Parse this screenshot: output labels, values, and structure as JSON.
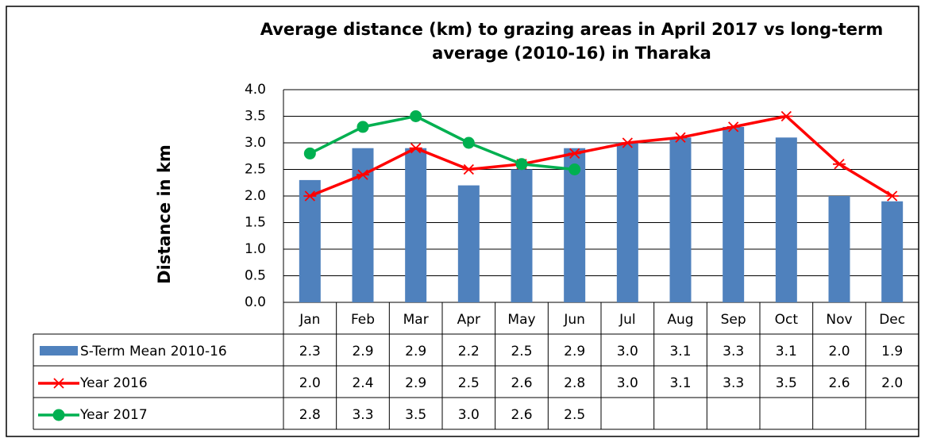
{
  "chart_data": {
    "type": "bar",
    "title": "Average distance (km) to grazing areas in April 2017 vs long-term average (2010-16) in Tharaka",
    "y_label": "Distance in km",
    "categories": [
      "Jan",
      "Feb",
      "Mar",
      "Apr",
      "May",
      "Jun",
      "Jul",
      "Aug",
      "Sep",
      "Oct",
      "Nov",
      "Dec"
    ],
    "series": [
      {
        "name": "S-Term Mean 2010-16",
        "type": "bar",
        "color": "#4f81bd",
        "values": [
          2.3,
          2.9,
          2.9,
          2.2,
          2.5,
          2.9,
          3.0,
          3.1,
          3.3,
          3.1,
          2.0,
          1.9
        ],
        "value_labels": [
          "2.3",
          "2.9",
          "2.9",
          "2.2",
          "2.5",
          "2.9",
          "3.0",
          "3.1",
          "3.3",
          "3.1",
          "2.0",
          "1.9"
        ]
      },
      {
        "name": "Year 2016",
        "type": "line",
        "marker": "star",
        "color": "#ff0000",
        "values": [
          2.0,
          2.4,
          2.9,
          2.5,
          2.6,
          2.8,
          3.0,
          3.1,
          3.3,
          3.5,
          2.6,
          2.0
        ],
        "value_labels": [
          "2.0",
          "2.4",
          "2.9",
          "2.5",
          "2.6",
          "2.8",
          "3.0",
          "3.1",
          "3.3",
          "3.5",
          "2.6",
          "2.0"
        ]
      },
      {
        "name": "Year 2017",
        "type": "line",
        "marker": "circle",
        "color": "#00b050",
        "values": [
          2.8,
          3.3,
          3.5,
          3.0,
          2.6,
          2.5,
          null,
          null,
          null,
          null,
          null,
          null
        ],
        "value_labels": [
          "2.8",
          "3.3",
          "3.5",
          "3.0",
          "2.6",
          "2.5",
          null,
          null,
          null,
          null,
          null,
          null
        ]
      }
    ],
    "ylim": [
      0,
      4
    ],
    "yticks": [
      {
        "value": 0,
        "label": "0.0"
      },
      {
        "value": 0.5,
        "label": "0.5"
      },
      {
        "value": 1,
        "label": "1.0"
      },
      {
        "value": 1.5,
        "label": "1.5"
      },
      {
        "value": 2,
        "label": "2.0"
      },
      {
        "value": 2.5,
        "label": "2.5"
      },
      {
        "value": 3,
        "label": "3.0"
      },
      {
        "value": 3.5,
        "label": "3.5"
      },
      {
        "value": 4,
        "label": "4.0"
      }
    ],
    "grid": true
  }
}
